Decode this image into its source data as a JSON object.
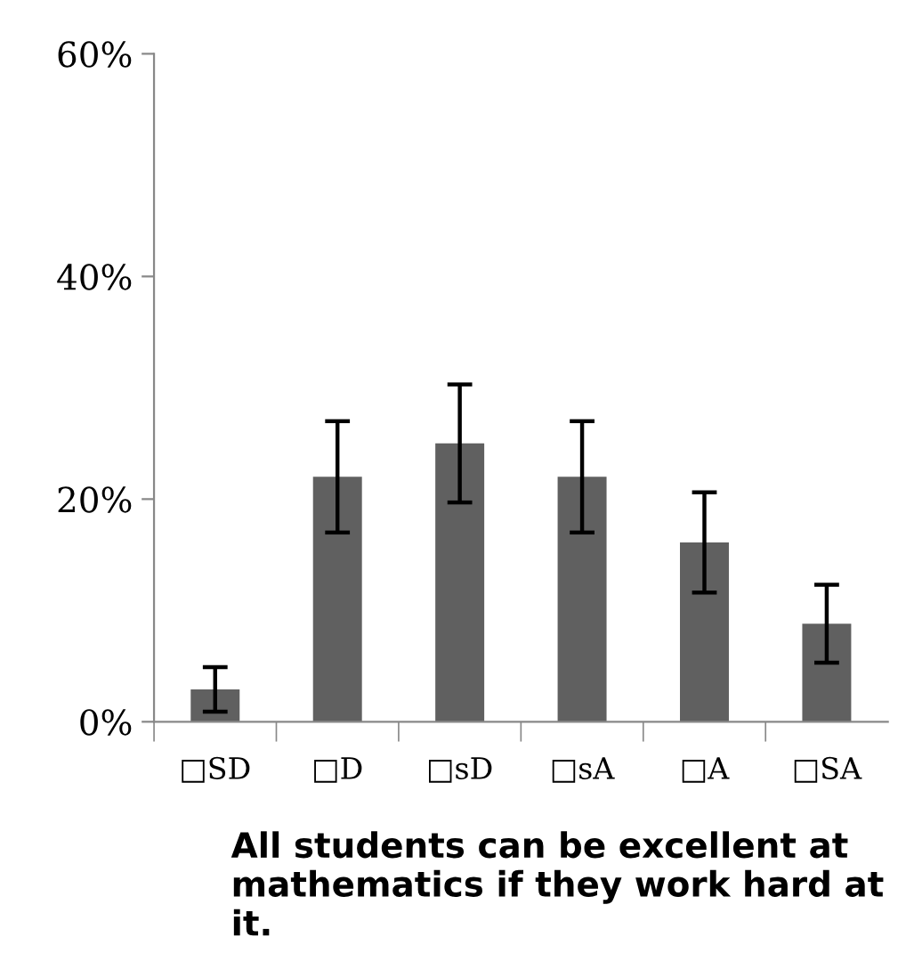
{
  "chart_data": {
    "type": "bar",
    "xlabel": "All students can be excellent at mathematics if they work hard at it.",
    "categories": [
      "□SD",
      "□D",
      "□sD",
      "□sA",
      "□A",
      "□SA"
    ],
    "values": [
      2.9,
      22,
      25,
      22,
      16.1,
      8.8
    ],
    "errors": [
      2,
      5,
      5.3,
      5,
      4.5,
      3.5
    ],
    "color": "#606060",
    "ylim": [
      0,
      60
    ],
    "yticks": [
      {
        "value": 0,
        "label": "0%"
      },
      {
        "value": 20,
        "label": "20%"
      },
      {
        "value": 40,
        "label": "40%"
      },
      {
        "value": 60,
        "label": "60%"
      }
    ],
    "grid": false,
    "legend": false
  }
}
